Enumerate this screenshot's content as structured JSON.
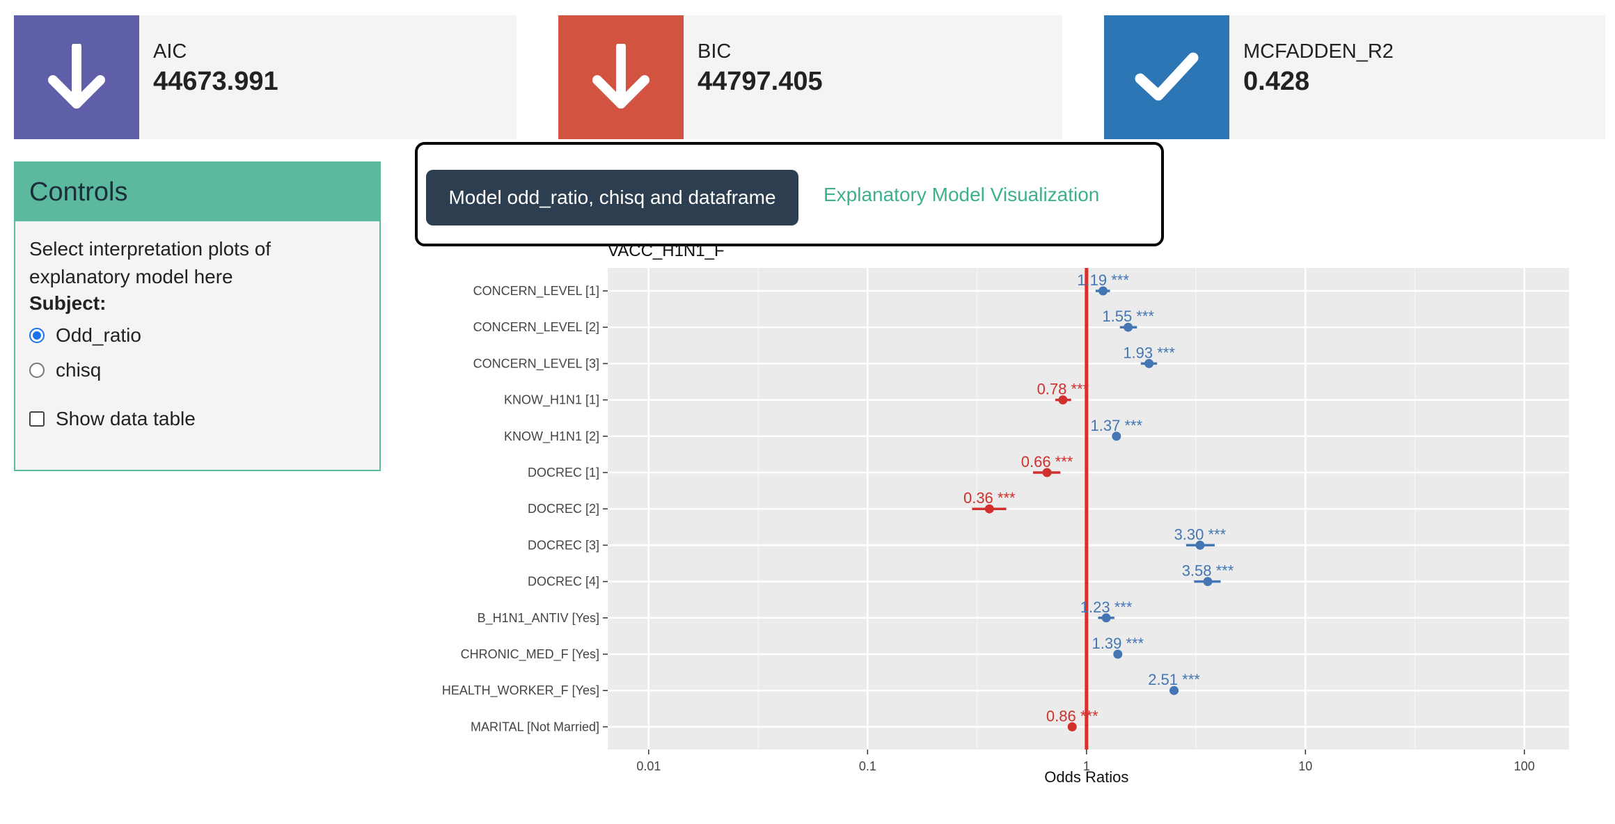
{
  "value_boxes": [
    {
      "caption": "AIC",
      "value": "44673.991",
      "color": "#5f5ea8",
      "icon": "arrow-down-icon"
    },
    {
      "caption": "BIC",
      "value": "44797.405",
      "color": "#d25440",
      "icon": "arrow-down-icon"
    },
    {
      "caption": "MCFADDEN_R2",
      "value": "0.428",
      "color": "#2c76b5",
      "icon": "check-icon"
    }
  ],
  "controls": {
    "title": "Controls",
    "description": "Select interpretation plots of explanatory model here",
    "subject_label": "Subject:",
    "options": [
      {
        "label": "Odd_ratio",
        "selected": true
      },
      {
        "label": "chisq",
        "selected": false
      }
    ],
    "show_table_label": "Show data table",
    "show_table_checked": false
  },
  "tabs": [
    {
      "label": "Model odd_ratio, chisq and dataframe",
      "active": true
    },
    {
      "label": "Explanatory Model Visualization",
      "active": false
    }
  ],
  "chart_data": {
    "type": "scatter",
    "title": "VACC_H1N1_F",
    "xlabel": "Odds Ratios",
    "ylabel": "",
    "x_scale": "log10",
    "xlim": [
      0.0065,
      160
    ],
    "x_ticks": [
      "0.01",
      "0.1",
      "1",
      "10",
      "100"
    ],
    "x_tick_values": [
      0.01,
      0.1,
      1,
      10,
      100
    ],
    "reference_line": 1,
    "colors": {
      "positive": "#4376b3",
      "negative": "#d1302c",
      "reference": "#d9302b",
      "panel": "#ebebeb"
    },
    "categories": [
      "CONCERN_LEVEL [1]",
      "CONCERN_LEVEL [2]",
      "CONCERN_LEVEL [3]",
      "KNOW_H1N1 [1]",
      "KNOW_H1N1 [2]",
      "DOCREC [1]",
      "DOCREC [2]",
      "DOCREC [3]",
      "DOCREC [4]",
      "B_H1N1_ANTIV [Yes]",
      "CHRONIC_MED_F [Yes]",
      "HEALTH_WORKER_F [Yes]",
      "MARITAL [Not Married]"
    ],
    "values": [
      1.19,
      1.55,
      1.93,
      0.78,
      1.37,
      0.66,
      0.36,
      3.3,
      3.58,
      1.23,
      1.39,
      2.51,
      0.86
    ],
    "ci_low": [
      1.1,
      1.42,
      1.77,
      0.72,
      1.32,
      0.57,
      0.3,
      2.85,
      3.1,
      1.13,
      1.34,
      2.4,
      0.83
    ],
    "ci_high": [
      1.28,
      1.7,
      2.1,
      0.85,
      1.42,
      0.76,
      0.43,
      3.85,
      4.1,
      1.34,
      1.44,
      2.63,
      0.89
    ],
    "labels": [
      "1.19 ***",
      "1.55 ***",
      "1.93 ***",
      "0.78 ***",
      "1.37 ***",
      "0.66 ***",
      "0.36 ***",
      "3.30 ***",
      "3.58 ***",
      "1.23 ***",
      "1.39 ***",
      "2.51 ***",
      "0.86 ***"
    ]
  }
}
